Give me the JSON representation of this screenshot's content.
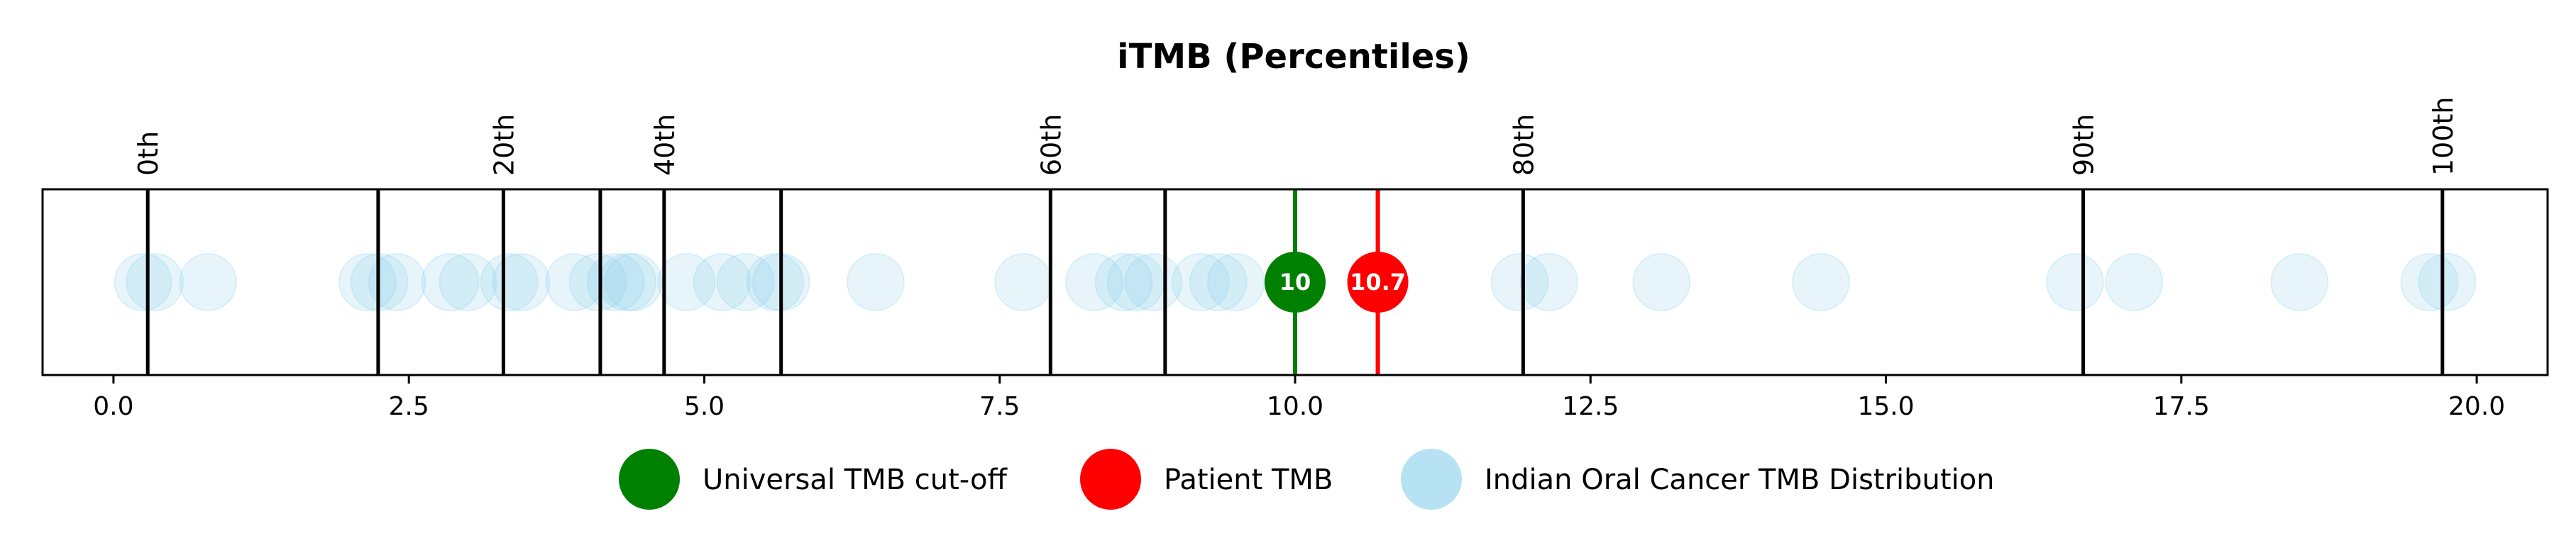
{
  "chart_data": {
    "type": "scatter",
    "title": "iTMB (Percentiles)",
    "xlim": [
      -0.6,
      20.6
    ],
    "x_ticks": [
      0.0,
      2.5,
      5.0,
      7.5,
      10.0,
      12.5,
      15.0,
      17.5,
      20.0
    ],
    "x_tick_labels": [
      "0.0",
      "2.5",
      "5.0",
      "7.5",
      "10.0",
      "12.5",
      "15.0",
      "17.5",
      "20.0"
    ],
    "percentile_lines": [
      0.29,
      2.24,
      3.3,
      4.12,
      4.66,
      5.65,
      7.93,
      8.9,
      11.93,
      16.67,
      19.71
    ],
    "percentile_labels": [
      {
        "label": "0th",
        "x": 0.29
      },
      {
        "label": "20th",
        "x": 3.3
      },
      {
        "label": "40th",
        "x": 4.66
      },
      {
        "label": "60th",
        "x": 7.93
      },
      {
        "label": "80th",
        "x": 11.93
      },
      {
        "label": "90th",
        "x": 16.67
      },
      {
        "label": "100th",
        "x": 19.71
      }
    ],
    "series": [
      {
        "name": "Indian Oral Cancer TMB Distribution",
        "color": "#87ceeb",
        "x": [
          0.25,
          0.35,
          0.8,
          2.15,
          2.25,
          2.4,
          2.85,
          3.0,
          3.35,
          3.45,
          3.9,
          4.1,
          4.25,
          4.35,
          4.4,
          4.85,
          5.15,
          5.35,
          5.6,
          5.65,
          6.45,
          7.7,
          8.3,
          8.55,
          8.65,
          8.8,
          9.2,
          9.35,
          9.5,
          11.9,
          12.15,
          13.1,
          14.45,
          16.6,
          17.1,
          18.5,
          19.6,
          19.75
        ]
      },
      {
        "name": "Universal TMB cut-off",
        "color": "#008000",
        "value": 10,
        "label": "10"
      },
      {
        "name": "Patient TMB",
        "color": "#ff0000",
        "value": 10.7,
        "label": "10.7"
      }
    ],
    "legend": {
      "placement": "bottom-center",
      "entries": [
        "Universal TMB cut-off",
        "Patient TMB",
        "Indian Oral Cancer TMB Distribution"
      ]
    },
    "grid": false
  }
}
